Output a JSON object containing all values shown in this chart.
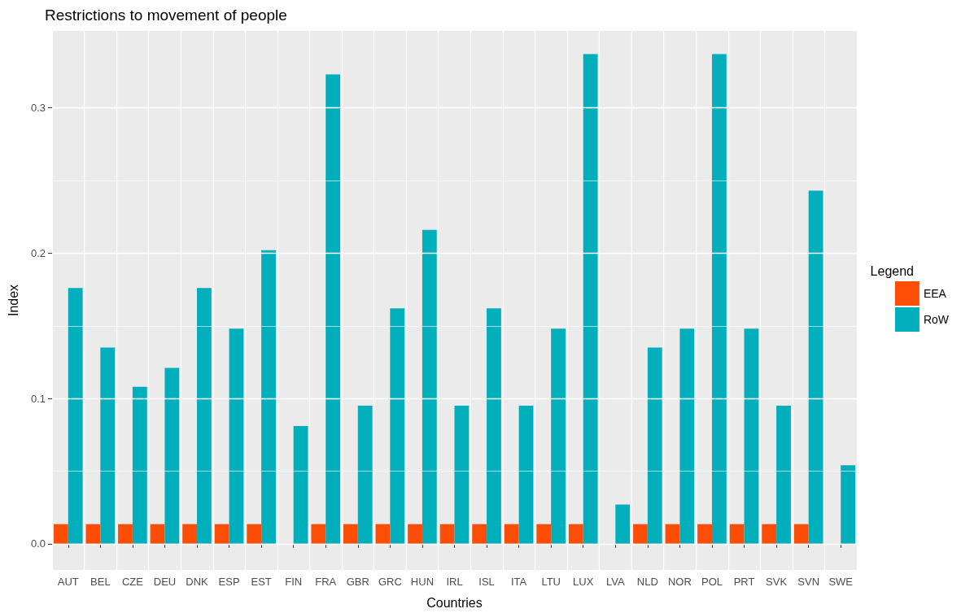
{
  "chart_data": {
    "type": "bar",
    "title": "Restrictions to movement of people",
    "xlabel": "Countries",
    "ylabel": "Index",
    "legend_title": "Legend",
    "legend": "right",
    "categories": [
      "AUT",
      "BEL",
      "CZE",
      "DEU",
      "DNK",
      "ESP",
      "EST",
      "FIN",
      "FRA",
      "GBR",
      "GRC",
      "HUN",
      "IRL",
      "ISL",
      "ITA",
      "LTU",
      "LUX",
      "LVA",
      "NLD",
      "NOR",
      "POL",
      "PRT",
      "SVK",
      "SVN",
      "SWE"
    ],
    "series": [
      {
        "name": "EEA",
        "color": "#fc4e07",
        "values": [
          0.0135,
          0.0135,
          0.0135,
          0.0135,
          0.0135,
          0.0135,
          0.0135,
          null,
          0.0135,
          0.0135,
          0.0135,
          0.0135,
          0.0135,
          0.0135,
          0.0135,
          0.0135,
          0.0135,
          null,
          0.0135,
          0.0135,
          0.0135,
          0.0135,
          0.0135,
          0.0135,
          null
        ]
      },
      {
        "name": "RoW",
        "color": "#00afbb",
        "values": [
          0.176,
          0.135,
          0.108,
          0.121,
          0.176,
          0.148,
          0.202,
          0.081,
          0.323,
          0.095,
          0.162,
          0.216,
          0.095,
          0.162,
          0.095,
          0.148,
          0.337,
          0.027,
          0.135,
          0.148,
          0.337,
          0.148,
          0.095,
          0.243,
          0.054
        ]
      }
    ],
    "ylim": [
      -0.018,
      0.353
    ],
    "yticks": [
      {
        "value": 0,
        "label": "0.0"
      },
      {
        "value": 0.1,
        "label": "0.1"
      },
      {
        "value": 0.2,
        "label": "0.2"
      },
      {
        "value": 0.3,
        "label": "0.3"
      }
    ],
    "grid": true
  }
}
